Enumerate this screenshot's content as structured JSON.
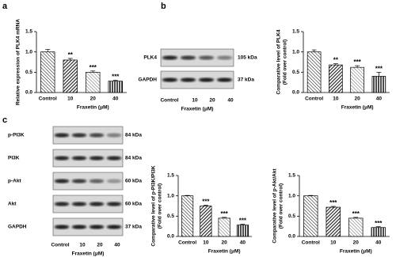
{
  "panel_labels": [
    "a",
    "b",
    "c"
  ],
  "blots": [
    {
      "categories": [
        "Control",
        "10",
        "20",
        "40"
      ],
      "xlabel": "Fraxetin (μM)",
      "rows": [
        {
          "name": "PLK4",
          "size": "105 kDa"
        },
        {
          "name": "GAPDH",
          "size": "37 kDa"
        }
      ]
    },
    {
      "categories": [
        "Control",
        "10",
        "20",
        "40"
      ],
      "xlabel": "Fraxetin (μM)",
      "rows": [
        {
          "name": "p-PI3K",
          "size": "84 kDa"
        },
        {
          "name": "PI3K",
          "size": "84 kDa"
        },
        {
          "name": "p-Akt",
          "size": "60 kDa"
        },
        {
          "name": "Akt",
          "size": "60 kDa"
        },
        {
          "name": "GAPDH",
          "size": "37 kDa"
        }
      ]
    }
  ],
  "chart_data": [
    {
      "type": "bar",
      "ylabel": [
        "Relative expression of PLK4 mRNA"
      ],
      "xlabel": "Fraxetin (μM)",
      "categories": [
        "Control",
        "10",
        "20",
        "40"
      ],
      "values": [
        1.0,
        0.8,
        0.5,
        0.28
      ],
      "errors": [
        0.06,
        0.04,
        0.03,
        0.02
      ],
      "annotations": [
        null,
        "**",
        "***",
        "***"
      ],
      "patterns": [
        0,
        1,
        2,
        3
      ],
      "ylim": [
        0,
        1.5
      ],
      "yticks": [
        {
          "value": 0,
          "label": "0.0"
        },
        0.5,
        {
          "value": 1,
          "label": "1.0"
        },
        1.5
      ]
    },
    {
      "type": "bar",
      "ylabel": [
        "Comparative level of PLK4",
        "(Fold over control)"
      ],
      "xlabel": "Fraxetin (μM)",
      "categories": [
        "Control",
        "10",
        "20",
        "40"
      ],
      "values": [
        1.0,
        0.68,
        0.62,
        0.4
      ],
      "errors": [
        0.05,
        0.03,
        0.04,
        0.1
      ],
      "annotations": [
        null,
        "**",
        "***",
        "***"
      ],
      "patterns": [
        0,
        1,
        2,
        3
      ],
      "ylim": [
        0,
        1.5
      ],
      "yticks": [
        {
          "value": 0,
          "label": "0.0"
        },
        0.5,
        {
          "value": 1,
          "label": "1.0"
        },
        1.5
      ]
    },
    {
      "type": "bar",
      "ylabel": [
        "Comparative level of p-PI3K/PI3K",
        "(Fold over control)"
      ],
      "xlabel": "Fraxetin (μM)",
      "categories": [
        "Control",
        "10",
        "20",
        "40"
      ],
      "values": [
        1.0,
        0.75,
        0.45,
        0.28
      ],
      "errors": [
        0.01,
        0.02,
        0.02,
        0.02
      ],
      "annotations": [
        null,
        "***",
        "***",
        "***"
      ],
      "patterns": [
        0,
        1,
        2,
        3
      ],
      "ylim": [
        0,
        1.5
      ],
      "yticks": [
        {
          "value": 0,
          "label": "0.0"
        },
        0.5,
        {
          "value": 1,
          "label": "1.0"
        },
        1.5
      ]
    },
    {
      "type": "bar",
      "ylabel": [
        "Comparative level of p-Akt/Akt",
        "(Fold over control)"
      ],
      "xlabel": "Fraxetin (μM)",
      "categories": [
        "Control",
        "10",
        "20",
        "40"
      ],
      "values": [
        1.0,
        0.72,
        0.45,
        0.22
      ],
      "errors": [
        0.01,
        0.02,
        0.02,
        0.02
      ],
      "annotations": [
        null,
        "***",
        "***",
        "***"
      ],
      "patterns": [
        0,
        1,
        2,
        3
      ],
      "ylim": [
        0,
        1.5
      ],
      "yticks": [
        {
          "value": 0,
          "label": "0.0"
        },
        0.5,
        {
          "value": 1,
          "label": "1.0"
        },
        1.5
      ]
    }
  ]
}
